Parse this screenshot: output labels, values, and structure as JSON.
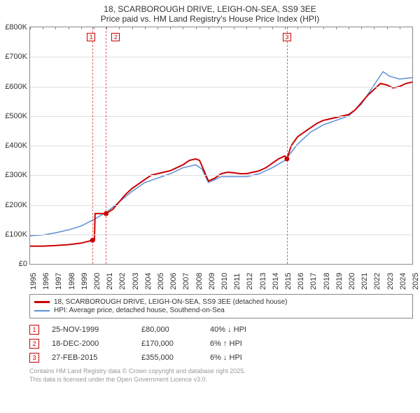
{
  "title": {
    "line1": "18, SCARBOROUGH DRIVE, LEIGH-ON-SEA, SS9 3EE",
    "line2": "Price paid vs. HM Land Registry's House Price Index (HPI)"
  },
  "chart": {
    "background": "#ffffff",
    "grid_color": "#e0e0e0",
    "border_color": "#888888",
    "y": {
      "min": 0,
      "max": 800000,
      "step": 100000,
      "prefix": "£",
      "suffix": "K",
      "divisor": 1000
    },
    "x": {
      "min": 1995,
      "max": 2025,
      "step": 1
    },
    "series": [
      {
        "id": "price_paid",
        "label": "18, SCARBOROUGH DRIVE, LEIGH-ON-SEA, SS9 3EE (detached house)",
        "color": "#cc0000",
        "width": 2,
        "points": [
          [
            1995.0,
            60000
          ],
          [
            1996.0,
            60000
          ],
          [
            1997.0,
            62000
          ],
          [
            1998.0,
            65000
          ],
          [
            1999.0,
            70000
          ],
          [
            1999.9,
            80000
          ],
          [
            2000.05,
            80000
          ],
          [
            2000.1,
            170000
          ],
          [
            2000.96,
            170000
          ],
          [
            2001.5,
            185000
          ],
          [
            2002.0,
            210000
          ],
          [
            2002.5,
            235000
          ],
          [
            2003.0,
            255000
          ],
          [
            2003.5,
            270000
          ],
          [
            2004.0,
            285000
          ],
          [
            2004.5,
            300000
          ],
          [
            2005.0,
            305000
          ],
          [
            2005.5,
            310000
          ],
          [
            2006.0,
            315000
          ],
          [
            2006.5,
            325000
          ],
          [
            2007.0,
            335000
          ],
          [
            2007.5,
            350000
          ],
          [
            2008.0,
            355000
          ],
          [
            2008.3,
            350000
          ],
          [
            2008.7,
            310000
          ],
          [
            2009.0,
            280000
          ],
          [
            2009.5,
            290000
          ],
          [
            2010.0,
            305000
          ],
          [
            2010.5,
            310000
          ],
          [
            2011.0,
            308000
          ],
          [
            2011.5,
            305000
          ],
          [
            2012.0,
            305000
          ],
          [
            2012.5,
            310000
          ],
          [
            2013.0,
            315000
          ],
          [
            2013.5,
            325000
          ],
          [
            2014.0,
            340000
          ],
          [
            2014.5,
            355000
          ],
          [
            2015.0,
            365000
          ],
          [
            2015.16,
            355000
          ],
          [
            2015.5,
            400000
          ],
          [
            2016.0,
            430000
          ],
          [
            2016.5,
            445000
          ],
          [
            2017.0,
            460000
          ],
          [
            2017.5,
            475000
          ],
          [
            2018.0,
            485000
          ],
          [
            2018.5,
            490000
          ],
          [
            2019.0,
            495000
          ],
          [
            2019.5,
            500000
          ],
          [
            2020.0,
            505000
          ],
          [
            2020.5,
            520000
          ],
          [
            2021.0,
            545000
          ],
          [
            2021.5,
            570000
          ],
          [
            2022.0,
            590000
          ],
          [
            2022.5,
            610000
          ],
          [
            2023.0,
            605000
          ],
          [
            2023.5,
            595000
          ],
          [
            2024.0,
            600000
          ],
          [
            2024.5,
            610000
          ],
          [
            2025.0,
            615000
          ]
        ]
      },
      {
        "id": "hpi",
        "label": "HPI: Average price, detached house, Southend-on-Sea",
        "color": "#5b8fd6",
        "width": 1.5,
        "points": [
          [
            1995.0,
            95000
          ],
          [
            1996.0,
            98000
          ],
          [
            1997.0,
            105000
          ],
          [
            1998.0,
            115000
          ],
          [
            1999.0,
            128000
          ],
          [
            2000.0,
            150000
          ],
          [
            2001.0,
            175000
          ],
          [
            2002.0,
            210000
          ],
          [
            2003.0,
            245000
          ],
          [
            2004.0,
            275000
          ],
          [
            2005.0,
            290000
          ],
          [
            2006.0,
            305000
          ],
          [
            2007.0,
            325000
          ],
          [
            2008.0,
            335000
          ],
          [
            2008.5,
            320000
          ],
          [
            2009.0,
            275000
          ],
          [
            2009.5,
            285000
          ],
          [
            2010.0,
            295000
          ],
          [
            2011.0,
            295000
          ],
          [
            2012.0,
            295000
          ],
          [
            2013.0,
            305000
          ],
          [
            2014.0,
            325000
          ],
          [
            2015.0,
            350000
          ],
          [
            2016.0,
            405000
          ],
          [
            2017.0,
            445000
          ],
          [
            2018.0,
            470000
          ],
          [
            2019.0,
            485000
          ],
          [
            2020.0,
            500000
          ],
          [
            2021.0,
            540000
          ],
          [
            2022.0,
            605000
          ],
          [
            2022.7,
            650000
          ],
          [
            2023.2,
            635000
          ],
          [
            2024.0,
            625000
          ],
          [
            2025.0,
            630000
          ]
        ]
      }
    ],
    "markers": [
      {
        "n": "1",
        "x": 1999.9,
        "y": 80000,
        "label_y_offset": -220
      },
      {
        "n": "2",
        "x": 2000.96,
        "y": 170000,
        "label_y_offset": -220
      },
      {
        "n": "3",
        "x": 2015.16,
        "y": 355000,
        "label_y_offset": -220
      }
    ]
  },
  "legend": {
    "items": [
      {
        "color": "#cc0000",
        "text": "18, SCARBOROUGH DRIVE, LEIGH-ON-SEA, SS9 3EE (detached house)"
      },
      {
        "color": "#5b8fd6",
        "text": "HPI: Average price, detached house, Southend-on-Sea"
      }
    ]
  },
  "sales": [
    {
      "n": "1",
      "date": "25-NOV-1999",
      "price": "£80,000",
      "delta": "40% ↓ HPI",
      "dir": "down"
    },
    {
      "n": "2",
      "date": "18-DEC-2000",
      "price": "£170,000",
      "delta": "6% ↑ HPI",
      "dir": "up"
    },
    {
      "n": "3",
      "date": "27-FEB-2015",
      "price": "£355,000",
      "delta": "6% ↓ HPI",
      "dir": "down"
    }
  ],
  "footer": {
    "line1": "Contains HM Land Registry data © Crown copyright and database right 2025.",
    "line2": "This data is licensed under the Open Government Licence v3.0."
  }
}
